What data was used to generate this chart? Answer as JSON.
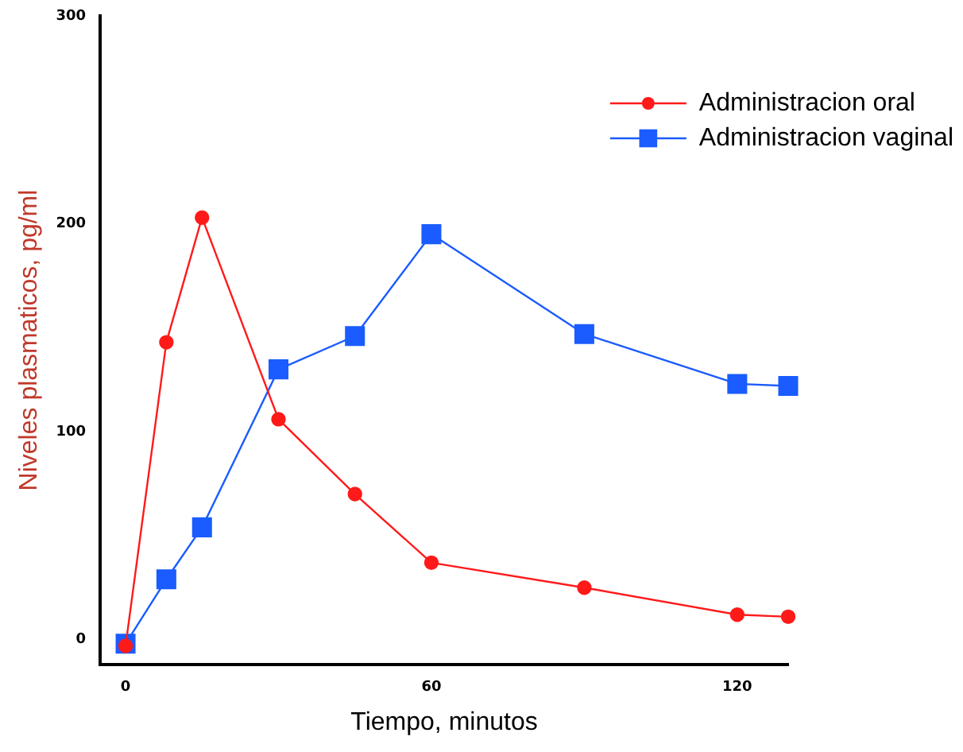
{
  "chart_data": {
    "type": "line",
    "xlabel": "Tiempo, minutos",
    "ylabel": "Niveles plasmaticos, pg/ml",
    "xlim": [
      -5,
      130
    ],
    "xticks": [
      0,
      60,
      120
    ],
    "ylim": [
      -12,
      300
    ],
    "yticks": [
      0,
      100,
      200,
      300
    ],
    "grid": false,
    "legend": "top right",
    "series": [
      {
        "name": "Administracion oral",
        "color": "#ff1a1a",
        "marker": "circle",
        "x": [
          0,
          8,
          15,
          30,
          45,
          60,
          90,
          120,
          130
        ],
        "values": [
          -3,
          143,
          203,
          106,
          70,
          37,
          25,
          12,
          11
        ]
      },
      {
        "name": "Administracion vaginal",
        "color": "#1a5cff",
        "marker": "square",
        "x": [
          0,
          8,
          15,
          30,
          45,
          60,
          90,
          120,
          130
        ],
        "values": [
          -2,
          29,
          54,
          130,
          146,
          195,
          147,
          123,
          122
        ]
      }
    ]
  }
}
